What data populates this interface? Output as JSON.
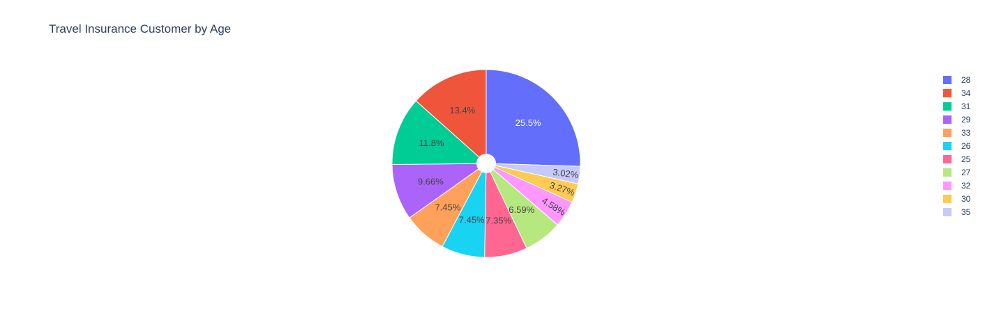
{
  "chart_data": {
    "type": "pie",
    "title": "Travel Insurance Customer by Age",
    "hole": true,
    "legend_position": "right",
    "slices": [
      {
        "label": "28",
        "value": 25.5,
        "text": "25.5%",
        "color": "#636efa",
        "text_color": "#ffffff"
      },
      {
        "label": "35",
        "value": 3.02,
        "text": "3.02%",
        "color": "#c6caf9",
        "text_color": "#444444"
      },
      {
        "label": "30",
        "value": 3.27,
        "text": "3.27%",
        "color": "#fecb52",
        "text_color": "#444444"
      },
      {
        "label": "32",
        "value": 4.58,
        "text": "4.58%",
        "color": "#ff97ff",
        "text_color": "#444444"
      },
      {
        "label": "27",
        "value": 6.59,
        "text": "6.59%",
        "color": "#b6e880",
        "text_color": "#444444"
      },
      {
        "label": "25",
        "value": 7.35,
        "text": "7.35%",
        "color": "#ff6692",
        "text_color": "#444444"
      },
      {
        "label": "26",
        "value": 7.45,
        "text": "7.45%",
        "color": "#19d3f3",
        "text_color": "#444444"
      },
      {
        "label": "33",
        "value": 7.45,
        "text": "7.45%",
        "color": "#ffa15a",
        "text_color": "#444444"
      },
      {
        "label": "29",
        "value": 9.66,
        "text": "9.66%",
        "color": "#ab63fa",
        "text_color": "#444444"
      },
      {
        "label": "31",
        "value": 11.8,
        "text": "11.8%",
        "color": "#00cc96",
        "text_color": "#444444"
      },
      {
        "label": "34",
        "value": 13.4,
        "text": "13.4%",
        "color": "#ef553b",
        "text_color": "#444444"
      }
    ],
    "legend": [
      "28",
      "34",
      "31",
      "29",
      "33",
      "26",
      "25",
      "27",
      "32",
      "30",
      "35"
    ]
  }
}
